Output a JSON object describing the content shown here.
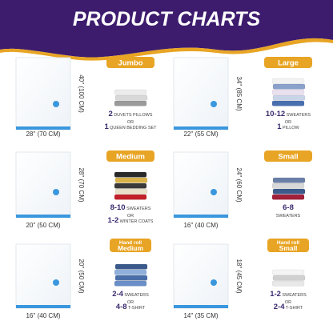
{
  "header": {
    "title": "PRODUCT CHARTS"
  },
  "products": [
    {
      "height": "40'' (100 CM)",
      "width": "28'' (70 CM)",
      "badge": "Jumbo",
      "capacity": [
        {
          "num": "2",
          "text": "DUVETS PILLOWS"
        },
        {
          "text": "OR"
        },
        {
          "num": "1",
          "text": "QUEEN BEDDING SET"
        }
      ]
    },
    {
      "height": "34'' (85 CM)",
      "width": "22'' (55 CM)",
      "badge": "Large",
      "capacity": [
        {
          "num": "10-12",
          "text": "SWEATERS"
        },
        {
          "text": "OR"
        },
        {
          "num": "1",
          "text": "PILLOW"
        }
      ]
    },
    {
      "height": "28'' (70 CM)",
      "width": "20'' (50 CM)",
      "badge": "Medium",
      "capacity": [
        {
          "num": "8-10",
          "text": "SWEATERS"
        },
        {
          "text": "OR"
        },
        {
          "num": "1-2",
          "text": "WINTER COATS"
        }
      ]
    },
    {
      "height": "24'' (60 CM)",
      "width": "16'' (40 CM)",
      "badge": "Small",
      "capacity": [
        {
          "num": "6-8"
        },
        {
          "text": "SWEATERS"
        }
      ]
    },
    {
      "height": "20'' (50 CM)",
      "width": "16'' (40 CM)",
      "badge_note": "Hand roll",
      "badge": "Medium",
      "capacity": [
        {
          "num": "2-4",
          "text": "SWEATERS"
        },
        {
          "text": "OR"
        },
        {
          "num": "4-8",
          "text": "T-SHIRT"
        }
      ]
    },
    {
      "height": "18'' (45 CM)",
      "width": "14'' (35 CM)",
      "badge_note": "Hand roll",
      "badge": "Small",
      "capacity": [
        {
          "num": "1-2",
          "text": "SWEATERS"
        },
        {
          "text": "OR"
        },
        {
          "num": "2-4",
          "text": "T-SHIRT"
        }
      ]
    }
  ]
}
